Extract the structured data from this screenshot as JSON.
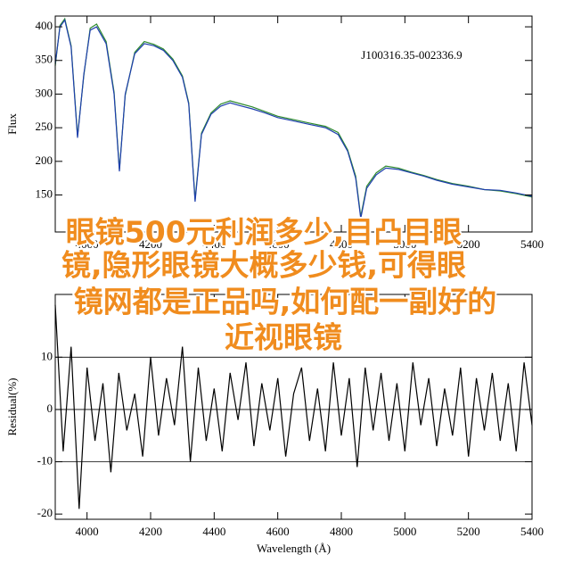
{
  "chart_data": [
    {
      "type": "line",
      "ylabel": "Flux",
      "annotation": "J100316.35-002336.9",
      "x": [
        3900,
        3915,
        3930,
        3950,
        3970,
        3990,
        4010,
        4030,
        4060,
        4085,
        4102,
        4120,
        4150,
        4180,
        4210,
        4240,
        4270,
        4300,
        4320,
        4340,
        4360,
        4390,
        4420,
        4450,
        4480,
        4520,
        4560,
        4600,
        4650,
        4700,
        4750,
        4790,
        4820,
        4845,
        4861,
        4880,
        4910,
        4940,
        4980,
        5020,
        5060,
        5100,
        5150,
        5200,
        5250,
        5300,
        5350,
        5400
      ],
      "series": [
        {
          "color": "#2e8b2e",
          "values": [
            342,
            402,
            412,
            372,
            238,
            328,
            398,
            404,
            378,
            303,
            188,
            298,
            362,
            378,
            374,
            367,
            352,
            327,
            287,
            143,
            242,
            272,
            285,
            290,
            286,
            281,
            274,
            267,
            262,
            257,
            252,
            243,
            217,
            178,
            118,
            163,
            183,
            193,
            190,
            184,
            179,
            173,
            167,
            163,
            158,
            156,
            152,
            147
          ]
        },
        {
          "color": "#1f3fae",
          "values": [
            345,
            400,
            410,
            370,
            235,
            330,
            395,
            400,
            375,
            300,
            185,
            300,
            360,
            375,
            372,
            365,
            350,
            325,
            285,
            140,
            240,
            270,
            282,
            287,
            283,
            278,
            272,
            265,
            260,
            255,
            250,
            240,
            215,
            175,
            115,
            160,
            180,
            190,
            188,
            183,
            178,
            172,
            166,
            162,
            158,
            157,
            153,
            148
          ]
        }
      ],
      "xlim": [
        3900,
        5400
      ],
      "ylim": [
        95,
        416
      ],
      "xticks": [
        4000,
        4200,
        4400,
        4600,
        4800,
        5000,
        5200,
        5400
      ],
      "yticks": [
        150,
        200,
        250,
        300,
        350,
        400
      ]
    },
    {
      "type": "line",
      "ylabel": "Residual(%)",
      "xlabel": "Wavelength (Å)",
      "x": [
        3900,
        3925,
        3950,
        3975,
        4000,
        4025,
        4050,
        4075,
        4100,
        4125,
        4150,
        4175,
        4200,
        4225,
        4250,
        4275,
        4300,
        4325,
        4350,
        4375,
        4400,
        4425,
        4450,
        4475,
        4500,
        4525,
        4550,
        4575,
        4600,
        4625,
        4650,
        4675,
        4700,
        4725,
        4750,
        4775,
        4800,
        4825,
        4850,
        4875,
        4900,
        4925,
        4950,
        4975,
        5000,
        5025,
        5050,
        5075,
        5100,
        5125,
        5150,
        5175,
        5200,
        5225,
        5250,
        5275,
        5300,
        5325,
        5350,
        5375,
        5400
      ],
      "series": [
        {
          "color": "#000000",
          "values": [
            20,
            -8,
            12,
            -19,
            8,
            -6,
            5,
            -12,
            7,
            -4,
            3,
            -9,
            10,
            -5,
            6,
            -3,
            12,
            -10,
            8,
            -6,
            4,
            -8,
            7,
            -2,
            9,
            -7,
            5,
            -4,
            6,
            -9,
            3,
            8,
            -6,
            4,
            -8,
            9,
            -5,
            6,
            -11,
            8,
            -4,
            7,
            -6,
            5,
            -8,
            9,
            -3,
            6,
            -7,
            4,
            -5,
            8,
            -9,
            6,
            -4,
            7,
            -6,
            5,
            -8,
            9,
            -3
          ]
        }
      ],
      "reference_lines": [
        -10,
        0,
        10
      ],
      "xlim": [
        3900,
        5400
      ],
      "ylim": [
        -21,
        22
      ],
      "xticks": [
        4000,
        4200,
        4400,
        4600,
        4800,
        5000,
        5200,
        5400
      ],
      "yticks": [
        -20,
        -10,
        0,
        10
      ]
    }
  ],
  "overlay_text": [
    "眼镜500元利润多少,目凸目眼",
    "镜,隐形眼镜大概多少钱,可得眼",
    "镜网都是正品吗,如何配一副好的",
    "近视眼镜"
  ]
}
